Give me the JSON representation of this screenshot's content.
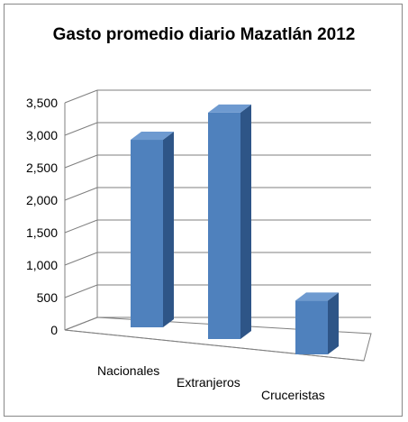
{
  "chart_data": {
    "type": "bar",
    "title": "Gasto promedio diario Mazatlán 2012",
    "xlabel": "",
    "ylabel": "",
    "categories": [
      "Nacionales",
      "Extranjeros",
      "Cruceristas"
    ],
    "values": [
      2650,
      3200,
      760
    ],
    "ylim": [
      0,
      3500
    ],
    "yticks": [
      "0",
      "500",
      "1,000",
      "1,500",
      "2,000",
      "2,500",
      "3,000",
      "3,500"
    ],
    "grid": true,
    "legend": "none",
    "style": "3d-column",
    "colors": {
      "bar_front": "#4F81BD",
      "bar_side": "#2E5587",
      "bar_top": "#6E9AD0",
      "grid": "#7f7f7f"
    }
  }
}
